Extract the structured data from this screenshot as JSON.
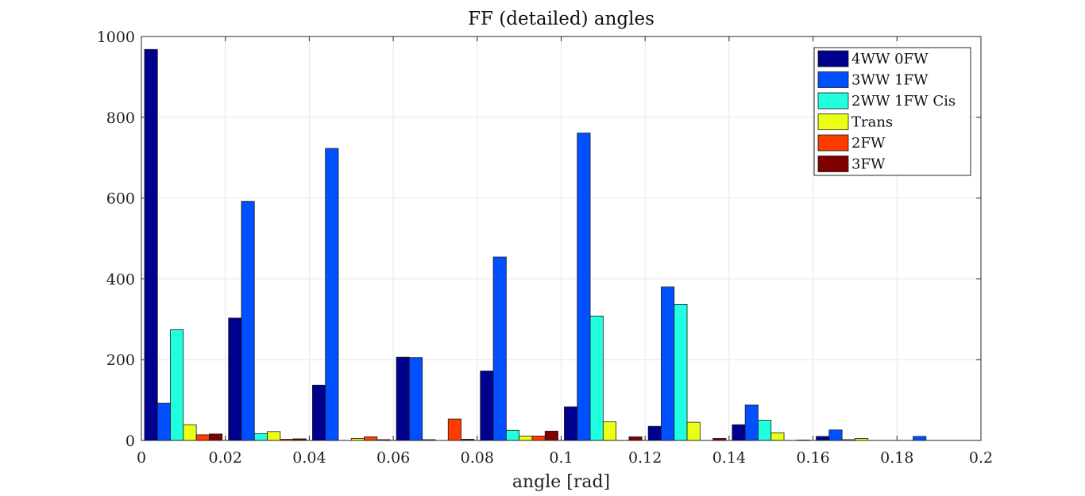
{
  "chart_data": {
    "type": "bar",
    "title": "FF (detailed) angles",
    "xlabel": "angle [rad]",
    "ylabel": "",
    "xlim": [
      0,
      0.2
    ],
    "ylim": [
      0,
      1000
    ],
    "xticks": [
      "0",
      "0.02",
      "0.04",
      "0.06",
      "0.08",
      "0.1",
      "0.12",
      "0.14",
      "0.16",
      "0.18",
      "0.2"
    ],
    "yticks": [
      "0",
      "200",
      "400",
      "600",
      "800",
      "1000"
    ],
    "grid": true,
    "legend_position": "top-right",
    "categories": [
      0.01,
      0.03,
      0.05,
      0.07,
      0.09,
      0.11,
      0.13,
      0.15,
      0.17,
      0.19
    ],
    "series": [
      {
        "name": "4WW 0FW",
        "color": "#00008f",
        "values": [
          968,
          303,
          137,
          206,
          172,
          83,
          35,
          39,
          10,
          0
        ]
      },
      {
        "name": "3WW 1FW",
        "color": "#0050ff",
        "values": [
          92,
          592,
          723,
          205,
          454,
          761,
          380,
          88,
          26,
          10
        ]
      },
      {
        "name": "2WW 1FW Cis",
        "color": "#20ffdf",
        "values": [
          274,
          17,
          0,
          2,
          25,
          308,
          337,
          50,
          2,
          0
        ]
      },
      {
        "name": "Trans",
        "color": "#eaff14",
        "values": [
          39,
          22,
          5,
          0,
          11,
          46,
          45,
          19,
          5,
          0
        ]
      },
      {
        "name": "2FW",
        "color": "#ff3c00",
        "values": [
          14,
          3,
          9,
          53,
          11,
          0,
          0,
          0,
          0,
          0
        ]
      },
      {
        "name": "3FW",
        "color": "#800000",
        "values": [
          16,
          4,
          2,
          3,
          23,
          9,
          5,
          1,
          0,
          0
        ]
      }
    ]
  }
}
